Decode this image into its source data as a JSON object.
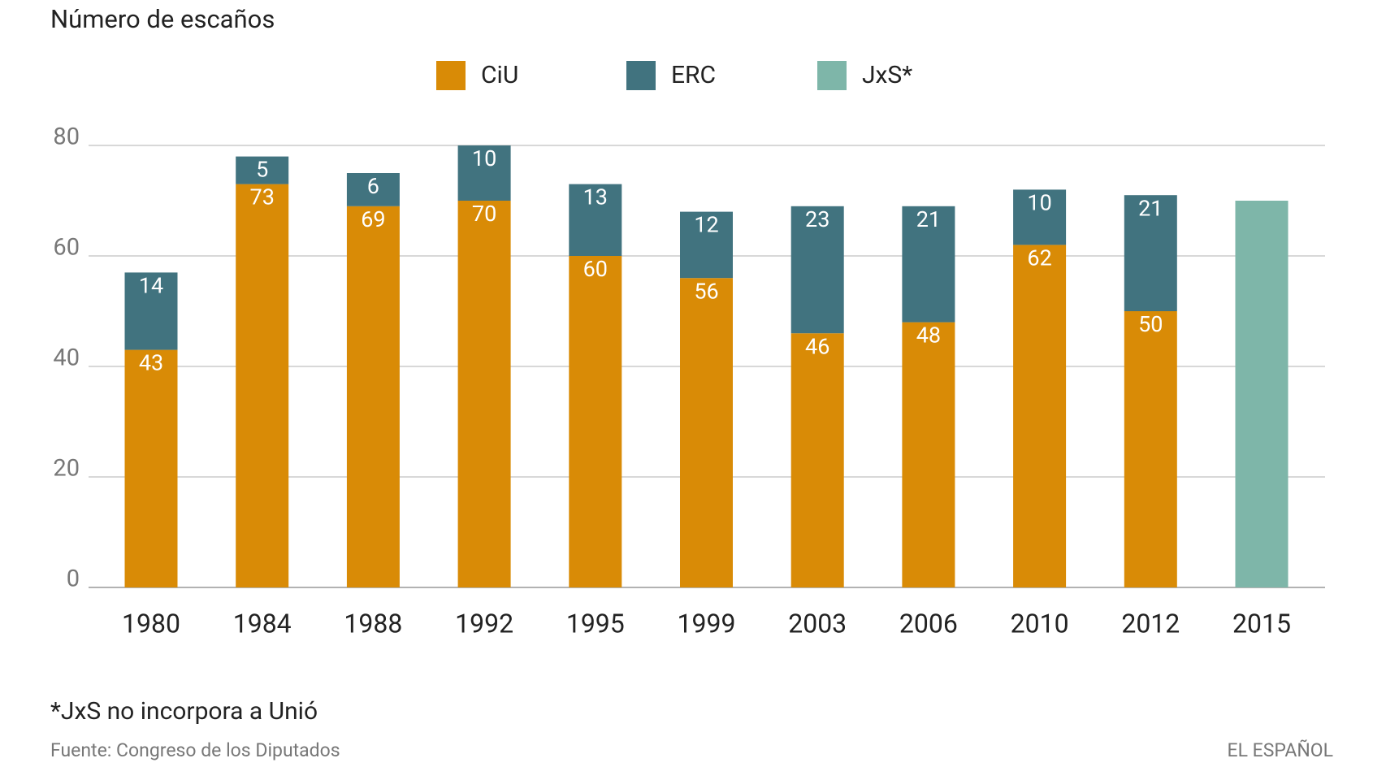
{
  "chart_data": {
    "type": "stacked_bar",
    "title": "Número de escaños",
    "categories": [
      "1980",
      "1984",
      "1988",
      "1992",
      "1995",
      "1999",
      "2003",
      "2006",
      "2010",
      "2012",
      "2015"
    ],
    "series": [
      {
        "name": "CiU",
        "color": "#d98b06",
        "data_labels": true,
        "values": [
          43,
          73,
          69,
          70,
          60,
          56,
          46,
          48,
          62,
          50,
          null
        ]
      },
      {
        "name": "ERC",
        "color": "#41737f",
        "data_labels": true,
        "values": [
          14,
          5,
          6,
          10,
          13,
          12,
          23,
          21,
          10,
          21,
          null
        ]
      },
      {
        "name": "JxS*",
        "color": "#7eb6a9",
        "data_labels": false,
        "values": [
          null,
          null,
          null,
          null,
          null,
          null,
          null,
          null,
          null,
          null,
          70
        ]
      }
    ],
    "ylim": [
      0,
      80
    ],
    "yticks": [
      0,
      20,
      40,
      60,
      80
    ],
    "grid": true,
    "legend": "top",
    "footnote": "*JxS no incorpora a Unió",
    "source": "Fuente: Congreso de los Diputados",
    "credit": "EL ESPAÑOL"
  }
}
